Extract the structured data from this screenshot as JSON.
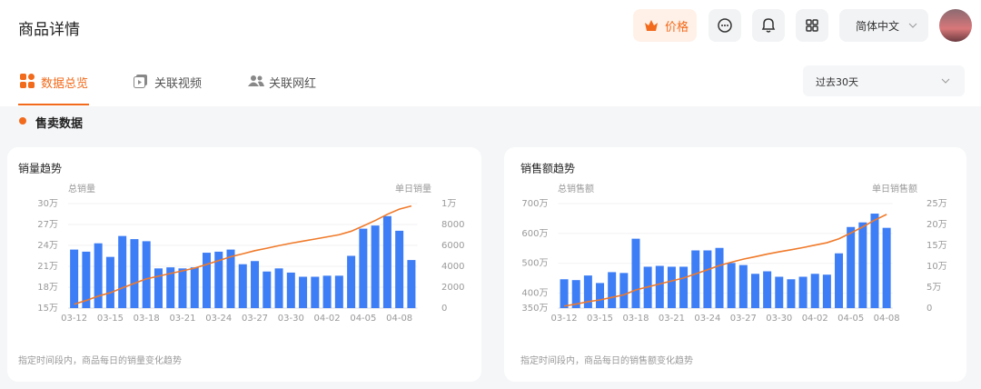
{
  "header": {
    "title": "商品详情",
    "price": "价格",
    "language": "简体中文"
  },
  "tabs": [
    "数据总览",
    "关联视频",
    "关联网红"
  ],
  "date_range": "过去30天",
  "section": "售卖数据",
  "chart_data": [
    {
      "type": "bar",
      "title": "销量趋势",
      "y_label": "总销量",
      "y2_label": "单日销量",
      "note": "指定时间段内，商品每日的销量变化趋势",
      "categories": [
        "03-12",
        null,
        null,
        "03-15",
        null,
        null,
        "03-18",
        null,
        null,
        "03-21",
        null,
        null,
        "03-24",
        null,
        null,
        "03-27",
        null,
        null,
        "03-30",
        null,
        null,
        "04-02",
        null,
        null,
        "04-05",
        null,
        null,
        "04-08",
        null
      ],
      "series": [
        {
          "type": "bar",
          "axis": "y2",
          "color": "#3d7ef6",
          "values": [
            5600,
            5400,
            6200,
            4900,
            6900,
            6600,
            6400,
            3800,
            3900,
            3800,
            3900,
            5300,
            5400,
            5600,
            4200,
            4500,
            3500,
            3800,
            3400,
            3000,
            3000,
            3100,
            3100,
            5000,
            7600,
            7900,
            8800,
            7400,
            4600
          ]
        },
        {
          "type": "line",
          "axis": "y",
          "color": "#f07a2a",
          "values": [
            155600,
            161000,
            167200,
            172100,
            179000,
            185600,
            192000,
            195800,
            199700,
            203500,
            207400,
            212700,
            218100,
            223700,
            227900,
            232400,
            235900,
            239700,
            243100,
            246100,
            249100,
            252200,
            255300,
            260300,
            267900,
            275800,
            284600,
            292000,
            296600
          ]
        }
      ],
      "ylim": [
        150000,
        300000
      ],
      "yticks": [
        {
          "value": 150000,
          "label": "15万"
        },
        {
          "value": 180000,
          "label": "18万"
        },
        {
          "value": 210000,
          "label": "21万"
        },
        {
          "value": 240000,
          "label": "24万"
        },
        {
          "value": 270000,
          "label": "27万"
        },
        {
          "value": 300000,
          "label": "30万"
        }
      ],
      "y2lim": [
        0,
        10000
      ],
      "y2ticks": [
        0,
        2000,
        4000,
        6000,
        8000,
        {
          "value": 10000,
          "label": "1万"
        }
      ],
      "grid": true
    },
    {
      "type": "bar",
      "title": "销售额趋势",
      "y_label": "总销售额",
      "y2_label": "单日销售额",
      "note": "指定时间段内，商品每日的销售额变化趋势",
      "categories": [
        "03-12",
        null,
        null,
        "03-15",
        null,
        null,
        "03-18",
        null,
        null,
        "03-21",
        null,
        null,
        "03-24",
        null,
        null,
        "03-27",
        null,
        null,
        "03-30",
        null,
        null,
        "04-02",
        null,
        null,
        "04-05",
        null,
        null,
        "04-08"
      ],
      "series": [
        {
          "type": "bar",
          "axis": "y2",
          "color": "#3d7ef6",
          "values": [
            69000,
            67000,
            78000,
            60000,
            86000,
            84000,
            166000,
            99000,
            101000,
            99000,
            99000,
            138000,
            138000,
            144000,
            108000,
            103000,
            82000,
            88000,
            75000,
            69000,
            75000,
            82000,
            80000,
            131000,
            194000,
            205000,
            226000,
            192000
          ]
        },
        {
          "type": "line",
          "axis": "y",
          "color": "#f07a2a",
          "values": [
            3569000,
            3636000,
            3714000,
            3774000,
            3860000,
            3944000,
            4110000,
            4209000,
            4310000,
            4409000,
            4508000,
            4646000,
            4784000,
            4928000,
            5036000,
            5139000,
            5221000,
            5309000,
            5384000,
            5453000,
            5528000,
            5610000,
            5690000,
            5821000,
            6015000,
            6220000,
            6446000,
            6638000
          ]
        }
      ],
      "ylim": [
        3500000,
        7000000
      ],
      "yticks": [
        {
          "value": 3500000,
          "label": "350万"
        },
        {
          "value": 4000000,
          "label": "400万"
        },
        {
          "value": 5000000,
          "label": "500万"
        },
        {
          "value": 6000000,
          "label": "600万"
        },
        {
          "value": 7000000,
          "label": "700万"
        }
      ],
      "y2lim": [
        0,
        250000
      ],
      "y2ticks": [
        0,
        {
          "value": 50000,
          "label": "5万"
        },
        {
          "value": 100000,
          "label": "10万"
        },
        {
          "value": 150000,
          "label": "15万"
        },
        {
          "value": 200000,
          "label": "20万"
        },
        {
          "value": 250000,
          "label": "25万"
        }
      ],
      "grid": true
    }
  ]
}
